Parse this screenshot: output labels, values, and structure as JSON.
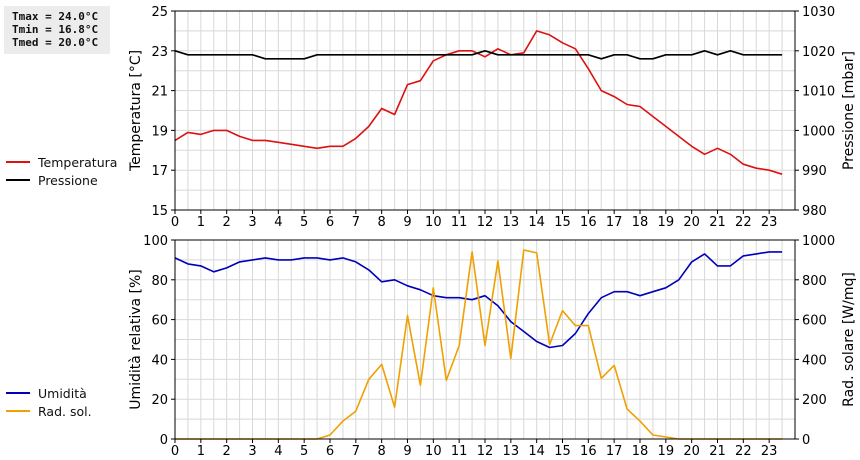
{
  "stats": {
    "tmax": "Tmax = 24.0°C",
    "tmin": "Tmin = 16.8°C",
    "tmed": "Tmed = 20.0°C"
  },
  "colors": {
    "temperature": "#dd1111",
    "pressure": "#000000",
    "humidity": "#0000bb",
    "radiation": "#f0a000",
    "grid": "#d8d8d8"
  },
  "chart_data": [
    {
      "type": "line",
      "ylabel": "Temperatura [°C]",
      "y2label": "Pressione [mbar]",
      "xlim": [
        0,
        24
      ],
      "ylim": [
        15,
        25
      ],
      "y2lim": [
        980,
        1030
      ],
      "x_ticks": [
        "0",
        "1",
        "2",
        "3",
        "4",
        "5",
        "6",
        "7",
        "8",
        "9",
        "10",
        "11",
        "12",
        "13",
        "14",
        "15",
        "16",
        "17",
        "18",
        "19",
        "20",
        "21",
        "22",
        "23"
      ],
      "y_ticks": [
        "15",
        "17",
        "19",
        "21",
        "23",
        "25"
      ],
      "y2_ticks": [
        "980",
        "990",
        "1000",
        "1010",
        "1020",
        "1030"
      ],
      "grid": true,
      "legend_position": "left",
      "series": [
        {
          "name": "Temperatura",
          "axis": "left",
          "x": [
            0,
            0.5,
            1,
            1.5,
            2,
            2.5,
            3,
            3.5,
            4,
            4.5,
            5,
            5.5,
            6,
            6.5,
            7,
            7.5,
            8,
            8.5,
            9,
            9.5,
            10,
            10.5,
            11,
            11.5,
            12,
            12.5,
            13,
            13.5,
            14,
            14.5,
            15,
            15.5,
            16,
            16.5,
            17,
            17.5,
            18,
            18.5,
            19,
            19.5,
            20,
            20.5,
            21,
            21.5,
            22,
            22.5,
            23,
            23.5
          ],
          "values": [
            18.5,
            18.9,
            18.8,
            19.0,
            19.0,
            18.7,
            18.5,
            18.5,
            18.4,
            18.3,
            18.2,
            18.1,
            18.2,
            18.2,
            18.6,
            19.2,
            20.1,
            19.8,
            21.3,
            21.5,
            22.5,
            22.8,
            23.0,
            23.0,
            22.7,
            23.1,
            22.8,
            22.9,
            24.0,
            23.8,
            23.4,
            23.1,
            22.1,
            21.0,
            20.7,
            20.3,
            20.2,
            19.7,
            19.2,
            18.7,
            18.2,
            17.8,
            18.1,
            17.8,
            17.3,
            17.1,
            17.0,
            16.8
          ]
        },
        {
          "name": "Pressione",
          "axis": "right",
          "x": [
            0,
            0.5,
            1,
            1.5,
            2,
            2.5,
            3,
            3.5,
            4,
            4.5,
            5,
            5.5,
            6,
            6.5,
            7,
            7.5,
            8,
            8.5,
            9,
            9.5,
            10,
            10.5,
            11,
            11.5,
            12,
            12.5,
            13,
            13.5,
            14,
            14.5,
            15,
            15.5,
            16,
            16.5,
            17,
            17.5,
            18,
            18.5,
            19,
            19.5,
            20,
            20.5,
            21,
            21.5,
            22,
            22.5,
            23,
            23.5
          ],
          "values": [
            1020,
            1019,
            1019,
            1019,
            1019,
            1019,
            1019,
            1018,
            1018,
            1018,
            1018,
            1019,
            1019,
            1019,
            1019,
            1019,
            1019,
            1019,
            1019,
            1019,
            1019,
            1019,
            1019,
            1019,
            1020,
            1019,
            1019,
            1019,
            1019,
            1019,
            1019,
            1019,
            1019,
            1018,
            1019,
            1019,
            1018,
            1018,
            1019,
            1019,
            1019,
            1020,
            1019,
            1020,
            1019,
            1019,
            1019,
            1019
          ]
        }
      ]
    },
    {
      "type": "line",
      "ylabel": "Umidità relativa [%]",
      "y2label": "Rad. solare [W/mq]",
      "xlim": [
        0,
        24
      ],
      "ylim": [
        0,
        100
      ],
      "y2lim": [
        0,
        1000
      ],
      "x_ticks": [
        "0",
        "1",
        "2",
        "3",
        "4",
        "5",
        "6",
        "7",
        "8",
        "9",
        "10",
        "11",
        "12",
        "13",
        "14",
        "15",
        "16",
        "17",
        "18",
        "19",
        "20",
        "21",
        "22",
        "23"
      ],
      "y_ticks": [
        "0",
        "20",
        "40",
        "60",
        "80",
        "100"
      ],
      "y2_ticks": [
        "0",
        "200",
        "400",
        "600",
        "800",
        "1000"
      ],
      "grid": true,
      "legend_position": "left",
      "series": [
        {
          "name": "Umidità",
          "axis": "left",
          "x": [
            0,
            0.5,
            1,
            1.5,
            2,
            2.5,
            3,
            3.5,
            4,
            4.5,
            5,
            5.5,
            6,
            6.5,
            7,
            7.5,
            8,
            8.5,
            9,
            9.5,
            10,
            10.5,
            11,
            11.5,
            12,
            12.5,
            13,
            13.5,
            14,
            14.5,
            15,
            15.5,
            16,
            16.5,
            17,
            17.5,
            18,
            18.5,
            19,
            19.5,
            20,
            20.5,
            21,
            21.5,
            22,
            22.5,
            23,
            23.5
          ],
          "values": [
            91,
            88,
            87,
            84,
            86,
            89,
            90,
            91,
            90,
            90,
            91,
            91,
            90,
            91,
            89,
            85,
            79,
            80,
            77,
            75,
            72,
            71,
            71,
            70,
            72,
            67,
            59,
            54,
            49,
            46,
            47,
            53,
            63,
            71,
            74,
            74,
            72,
            74,
            76,
            80,
            89,
            93,
            87,
            87,
            92,
            93,
            94,
            94
          ]
        },
        {
          "name": "Rad. sol.",
          "axis": "right",
          "x": [
            0,
            0.5,
            1,
            1.5,
            2,
            2.5,
            3,
            3.5,
            4,
            4.5,
            5,
            5.5,
            6,
            6.5,
            7,
            7.5,
            8,
            8.5,
            9,
            9.5,
            10,
            10.5,
            11,
            11.5,
            12,
            12.5,
            13,
            13.5,
            14,
            14.5,
            15,
            15.5,
            16,
            16.5,
            17,
            17.5,
            18,
            18.5,
            19,
            19.5,
            20,
            20.5,
            21,
            21.5,
            22,
            22.5,
            23,
            23.5
          ],
          "values": [
            0,
            0,
            0,
            0,
            0,
            0,
            0,
            0,
            0,
            0,
            0,
            0,
            20,
            90,
            140,
            300,
            375,
            160,
            620,
            270,
            760,
            295,
            470,
            940,
            470,
            895,
            405,
            950,
            935,
            475,
            645,
            570,
            570,
            305,
            370,
            150,
            90,
            20,
            10,
            0,
            0,
            0,
            0,
            0,
            0,
            0,
            0,
            0
          ]
        }
      ]
    }
  ]
}
